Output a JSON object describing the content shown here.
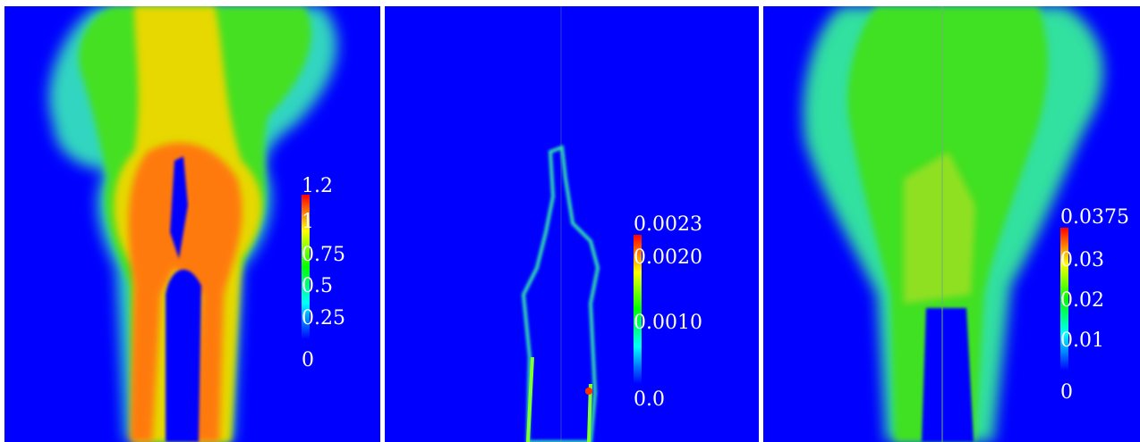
{
  "panels": [
    {
      "colorbar": {
        "labels": [
          "1.2",
          "1",
          "0.75",
          "0.5",
          "0.25",
          "0"
        ]
      }
    },
    {
      "colorbar": {
        "labels": [
          "0.0023",
          "0.0020",
          "0.0010",
          "0.0"
        ]
      }
    },
    {
      "colorbar": {
        "labels": [
          "0.0375",
          "0.03",
          "0.02",
          "0.01",
          "0"
        ]
      }
    }
  ]
}
